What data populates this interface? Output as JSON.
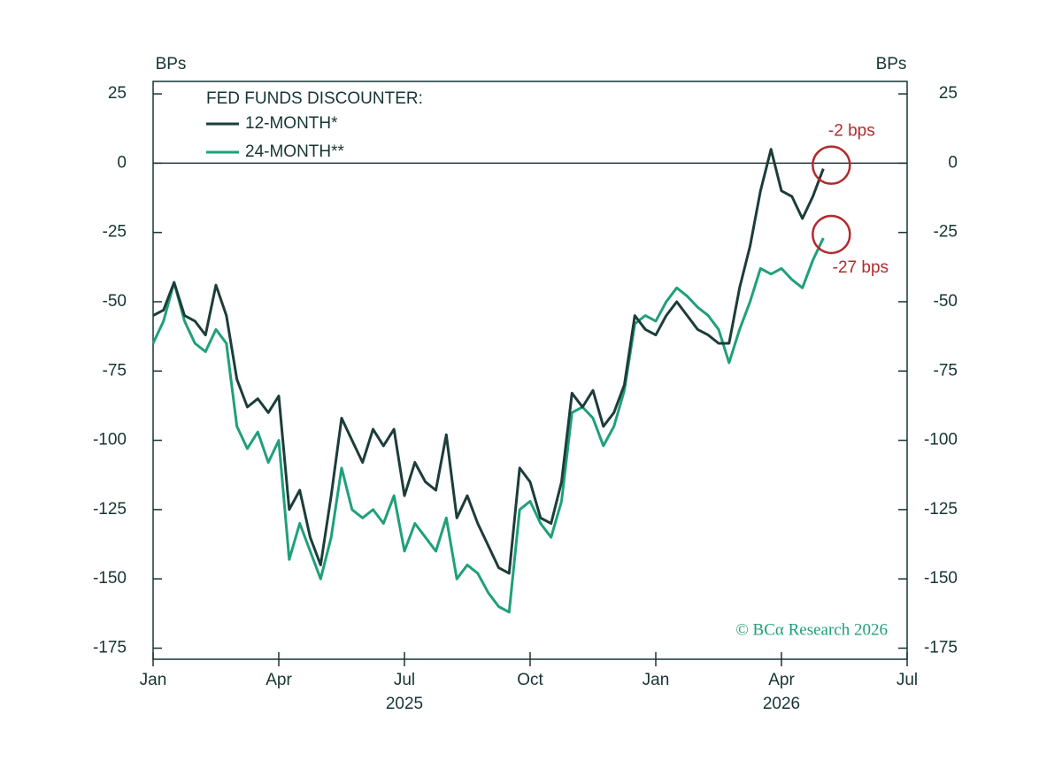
{
  "chart_data": {
    "type": "line",
    "y_axis_label": "BPs",
    "y2_axis_label": "BPs",
    "legend_title": "FED FUNDS DISCOUNTER:",
    "source": "© BCα Research 2026",
    "x": [
      0,
      0.25,
      0.5,
      0.75,
      1,
      1.25,
      1.5,
      1.75,
      2,
      2.25,
      2.5,
      2.75,
      3,
      3.25,
      3.5,
      3.75,
      4,
      4.25,
      4.5,
      4.75,
      5,
      5.25,
      5.5,
      5.75,
      6,
      6.25,
      6.5,
      6.75,
      7,
      7.25,
      7.5,
      7.75,
      8,
      8.25,
      8.5,
      8.75,
      9,
      9.25,
      9.5,
      9.75,
      10,
      10.25,
      10.5,
      10.75,
      11,
      11.25,
      11.5,
      11.75,
      12,
      12.25,
      12.5,
      12.75,
      13,
      13.25,
      13.5,
      13.75,
      14,
      14.25,
      14.5,
      14.75,
      15,
      15.25,
      15.5,
      15.75,
      16
    ],
    "series": [
      {
        "name": "12-MONTH*",
        "color": "#1c3d3a",
        "values": [
          -55,
          -53,
          -43,
          -55,
          -57,
          -62,
          -44,
          -55,
          -78,
          -88,
          -85,
          -90,
          -84,
          -125,
          -118,
          -135,
          -145,
          -120,
          -92,
          -100,
          -108,
          -96,
          -102,
          -96,
          -120,
          -108,
          -115,
          -118,
          -98,
          -128,
          -120,
          -130,
          -138,
          -146,
          -148,
          -110,
          -115,
          -128,
          -130,
          -115,
          -83,
          -88,
          -82,
          -95,
          -90,
          -80,
          -55,
          -60,
          -62,
          -55,
          -50,
          -55,
          -60,
          -62,
          -65,
          -65,
          -45,
          -30,
          -10,
          5,
          -10,
          -12,
          -20,
          -12,
          -2
        ]
      },
      {
        "name": "24-MONTH**",
        "color": "#1fa07a",
        "values": [
          -65,
          -57,
          -43,
          -57,
          -65,
          -68,
          -60,
          -65,
          -95,
          -103,
          -97,
          -108,
          -100,
          -143,
          -130,
          -140,
          -150,
          -135,
          -110,
          -125,
          -128,
          -125,
          -130,
          -120,
          -140,
          -130,
          -135,
          -140,
          -128,
          -150,
          -145,
          -148,
          -155,
          -160,
          -162,
          -125,
          -122,
          -130,
          -135,
          -122,
          -90,
          -88,
          -92,
          -102,
          -95,
          -82,
          -58,
          -55,
          -57,
          -50,
          -45,
          -48,
          -52,
          -55,
          -60,
          -72,
          -60,
          -50,
          -38,
          -40,
          -38,
          -42,
          -45,
          -35,
          -27
        ]
      }
    ],
    "annotations": [
      "-2 bps",
      "-27 bps"
    ],
    "reference_line": 0,
    "xlim": [
      0,
      18
    ],
    "xticks": [
      {
        "value": 0,
        "label": "Jan"
      },
      {
        "value": 3,
        "label": "Apr"
      },
      {
        "value": 6,
        "label": "Jul"
      },
      {
        "value": 9,
        "label": "Oct"
      },
      {
        "value": 12,
        "label": "Jan"
      },
      {
        "value": 15,
        "label": "Apr"
      },
      {
        "value": 18,
        "label": "Jul"
      }
    ],
    "x_year_labels": [
      {
        "value": 6,
        "label": "2025"
      },
      {
        "value": 15,
        "label": "2026"
      }
    ],
    "ylim": [
      -179,
      29.5
    ],
    "yticks": [
      25,
      0,
      -25,
      -50,
      -75,
      -100,
      -125,
      -150,
      -175
    ],
    "annotation_color": "#b22a2e"
  }
}
